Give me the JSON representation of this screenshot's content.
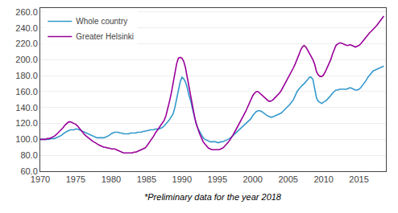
{
  "chart_data": {
    "type": "line",
    "annotations": [
      "*Preliminary data for the year 2018"
    ],
    "legend": "upper left",
    "grid": "y",
    "xlim": [
      1970,
      2018.8
    ],
    "ylim": [
      60,
      265
    ],
    "xticks": [
      1970,
      1975,
      1980,
      1985,
      1990,
      1995,
      2000,
      2005,
      2010,
      2015
    ],
    "yticks": [
      {
        "value": 60.0,
        "label": "60.0"
      },
      {
        "value": 80.0,
        "label": "80.0"
      },
      {
        "value": 100.0,
        "label": "100.0"
      },
      {
        "value": 120.0,
        "label": "120.0"
      },
      {
        "value": 140.0,
        "label": "140.0"
      },
      {
        "value": 160.0,
        "label": "160.0"
      },
      {
        "value": 180.0,
        "label": "180.0"
      },
      {
        "value": 200.0,
        "label": "200.0"
      },
      {
        "value": 220.0,
        "label": "220.0"
      },
      {
        "value": 240.0,
        "label": "240.0"
      },
      {
        "value": 260.0,
        "label": "260.0"
      }
    ],
    "x": [
      1970.0,
      1970.25,
      1970.5,
      1970.75,
      1971.0,
      1971.25,
      1971.5,
      1971.75,
      1972.0,
      1972.25,
      1972.5,
      1972.75,
      1973.0,
      1973.25,
      1973.5,
      1973.75,
      1974.0,
      1974.25,
      1974.5,
      1974.75,
      1975.0,
      1975.25,
      1975.5,
      1975.75,
      1976.0,
      1976.25,
      1976.5,
      1976.75,
      1977.0,
      1977.25,
      1977.5,
      1977.75,
      1978.0,
      1978.25,
      1978.5,
      1978.75,
      1979.0,
      1979.25,
      1979.5,
      1979.75,
      1980.0,
      1980.25,
      1980.5,
      1980.75,
      1981.0,
      1981.25,
      1981.5,
      1981.75,
      1982.0,
      1982.25,
      1982.5,
      1982.75,
      1983.0,
      1983.25,
      1983.5,
      1983.75,
      1984.0,
      1984.25,
      1984.5,
      1984.75,
      1985.0,
      1985.25,
      1985.5,
      1985.75,
      1986.0,
      1986.25,
      1986.5,
      1986.75,
      1987.0,
      1987.25,
      1987.5,
      1987.75,
      1988.0,
      1988.25,
      1988.5,
      1988.75,
      1989.0,
      1989.25,
      1989.5,
      1989.75,
      1990.0,
      1990.25,
      1990.5,
      1990.75,
      1991.0,
      1991.25,
      1991.5,
      1991.75,
      1992.0,
      1992.25,
      1992.5,
      1992.75,
      1993.0,
      1993.25,
      1993.5,
      1993.75,
      1994.0,
      1994.25,
      1994.5,
      1994.75,
      1995.0,
      1995.25,
      1995.5,
      1995.75,
      1996.0,
      1996.25,
      1996.5,
      1996.75,
      1997.0,
      1997.25,
      1997.5,
      1997.75,
      1998.0,
      1998.25,
      1998.5,
      1998.75,
      1999.0,
      1999.25,
      1999.5,
      1999.75,
      2000.0,
      2000.25,
      2000.5,
      2000.75,
      2001.0,
      2001.25,
      2001.5,
      2001.75,
      2002.0,
      2002.25,
      2002.5,
      2002.75,
      2003.0,
      2003.25,
      2003.5,
      2003.75,
      2004.0,
      2004.25,
      2004.5,
      2004.75,
      2005.0,
      2005.25,
      2005.5,
      2005.75,
      2006.0,
      2006.25,
      2006.5,
      2006.75,
      2007.0,
      2007.25,
      2007.5,
      2007.75,
      2008.0,
      2008.25,
      2008.5,
      2008.75,
      2009.0,
      2009.25,
      2009.5,
      2009.75,
      2010.0,
      2010.25,
      2010.5,
      2010.75,
      2011.0,
      2011.25,
      2011.5,
      2011.75,
      2012.0,
      2012.25,
      2012.5,
      2012.75,
      2013.0,
      2013.25,
      2013.5,
      2013.75,
      2014.0,
      2014.25,
      2014.5,
      2014.75,
      2015.0,
      2015.25,
      2015.5,
      2015.75,
      2016.0,
      2016.25,
      2016.5,
      2016.75,
      2017.0,
      2017.25,
      2017.5,
      2017.75,
      2018.0,
      2018.25,
      2018.5
    ],
    "series": [
      {
        "name": "Whole country",
        "color": "#3399CC",
        "values": [
          100,
          100,
          100,
          100,
          100,
          100,
          101,
          101,
          101,
          102,
          103,
          104,
          105,
          107,
          109,
          110,
          111,
          112,
          112,
          112,
          113,
          113,
          112,
          111,
          110,
          109,
          108,
          107,
          106,
          105,
          104,
          103,
          102,
          102,
          102,
          102,
          102,
          103,
          104,
          105,
          107,
          108,
          109,
          109,
          109,
          108,
          108,
          107,
          107,
          107,
          107,
          108,
          108,
          108,
          108,
          109,
          109,
          109,
          110,
          110,
          111,
          111,
          112,
          112,
          112,
          113,
          113,
          113,
          114,
          115,
          117,
          119,
          122,
          125,
          128,
          132,
          140,
          150,
          162,
          172,
          178,
          176,
          172,
          165,
          155,
          148,
          138,
          128,
          120,
          114,
          110,
          106,
          102,
          100,
          99,
          98,
          97,
          97,
          97,
          97,
          96,
          96,
          97,
          97,
          98,
          99,
          100,
          101,
          103,
          105,
          107,
          109,
          111,
          113,
          115,
          117,
          119,
          121,
          123,
          126,
          130,
          133,
          135,
          136,
          136,
          135,
          133,
          132,
          130,
          129,
          128,
          128,
          129,
          130,
          131,
          132,
          133,
          135,
          137,
          139,
          141,
          144,
          147,
          150,
          155,
          160,
          163,
          166,
          168,
          170,
          172,
          175,
          178,
          178,
          175,
          165,
          152,
          148,
          146,
          145,
          147,
          148,
          150,
          152,
          155,
          158,
          160,
          162,
          162,
          163,
          163,
          163,
          163,
          163,
          164,
          165,
          164,
          163,
          162,
          162,
          163,
          165,
          168,
          170,
          174,
          178,
          181,
          184,
          186,
          187,
          188,
          189,
          190,
          191,
          192
        ]
      },
      {
        "name": "Greater Helsinki",
        "color": "#990099",
        "values": [
          100,
          100,
          100,
          100,
          101,
          101,
          102,
          103,
          104,
          106,
          108,
          110,
          112,
          115,
          118,
          120,
          122,
          122,
          121,
          120,
          119,
          117,
          114,
          111,
          108,
          106,
          104,
          102,
          100,
          99,
          97,
          96,
          94,
          93,
          92,
          91,
          90,
          90,
          89,
          89,
          88,
          88,
          88,
          87,
          86,
          85,
          84,
          83,
          83,
          83,
          83,
          83,
          83,
          84,
          84,
          85,
          86,
          87,
          88,
          89,
          91,
          94,
          97,
          100,
          104,
          108,
          111,
          114,
          117,
          120,
          124,
          130,
          138,
          148,
          158,
          170,
          183,
          195,
          202,
          203,
          202,
          198,
          190,
          178,
          163,
          152,
          141,
          130,
          120,
          113,
          107,
          102,
          97,
          94,
          91,
          89,
          88,
          87,
          87,
          87,
          87,
          87,
          88,
          89,
          91,
          93,
          96,
          99,
          102,
          106,
          110,
          114,
          118,
          122,
          126,
          130,
          135,
          140,
          145,
          150,
          155,
          158,
          160,
          160,
          158,
          156,
          153,
          151,
          149,
          148,
          148,
          149,
          151,
          153,
          155,
          158,
          161,
          165,
          169,
          173,
          177,
          182,
          186,
          190,
          195,
          200,
          206,
          212,
          216,
          218,
          216,
          212,
          208,
          204,
          200,
          194,
          185,
          181,
          179,
          179,
          181,
          185,
          190,
          195,
          200,
          207,
          213,
          218,
          220,
          221,
          221,
          220,
          219,
          218,
          218,
          219,
          218,
          217,
          216,
          217,
          218,
          220,
          223,
          226,
          229,
          232,
          234,
          236,
          238,
          240,
          243,
          246,
          249,
          252,
          255
        ]
      }
    ]
  }
}
